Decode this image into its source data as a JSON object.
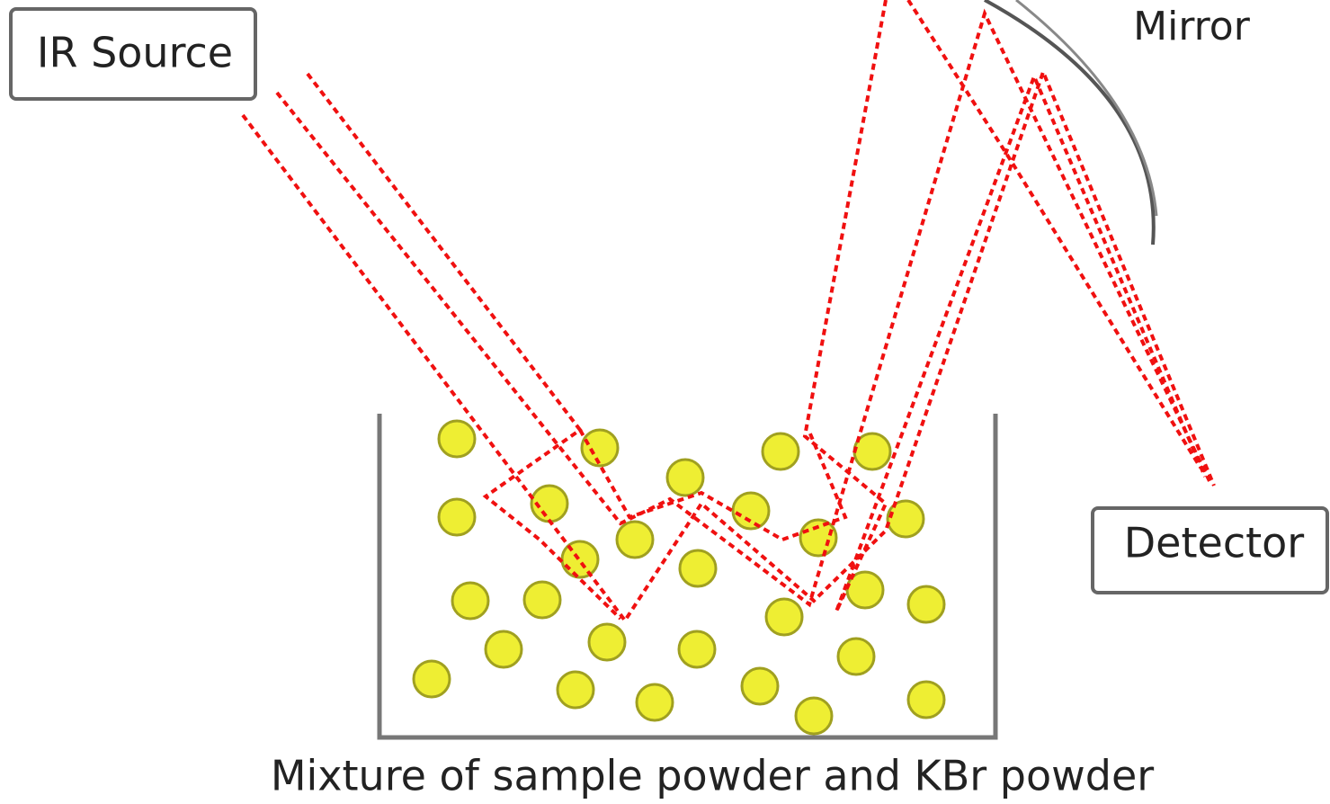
{
  "labels": {
    "source": "IR Source",
    "mirror": "Mirror",
    "detector": "Detector",
    "caption": "Mixture of sample powder and KBr powder"
  }
}
